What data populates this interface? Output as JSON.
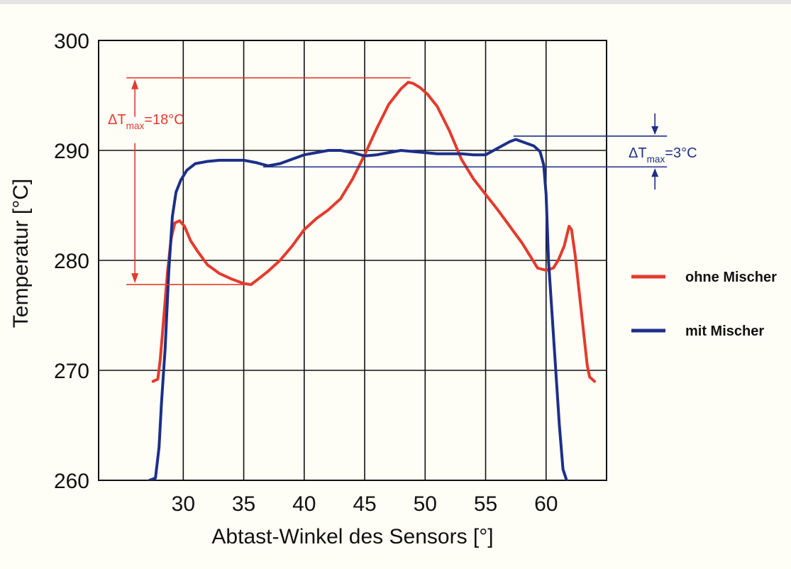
{
  "chart_data": {
    "type": "line",
    "title": "",
    "xlabel": "Abtast-Winkel des Sensors [°]",
    "ylabel": "Temperatur [°C]",
    "xlim": [
      23,
      65
    ],
    "ylim": [
      260,
      300
    ],
    "x_ticks": [
      30,
      35,
      40,
      45,
      50,
      55,
      60
    ],
    "y_ticks": [
      260,
      270,
      280,
      290,
      300
    ],
    "x_gridlines": [
      30,
      35,
      40,
      45,
      50,
      55,
      60
    ],
    "y_gridlines": [
      270,
      280,
      290
    ],
    "grid": true,
    "legend_position": "right",
    "series": [
      {
        "name": "ohne Mischer",
        "color": "#e53a2c",
        "points": [
          [
            27.5,
            269.0
          ],
          [
            27.9,
            269.2
          ],
          [
            28.1,
            271.0
          ],
          [
            28.4,
            275.0
          ],
          [
            28.7,
            279.0
          ],
          [
            29.0,
            282.0
          ],
          [
            29.3,
            283.4
          ],
          [
            29.7,
            283.6
          ],
          [
            30.1,
            283.1
          ],
          [
            30.6,
            281.8
          ],
          [
            31.2,
            280.8
          ],
          [
            32.0,
            279.6
          ],
          [
            33.0,
            278.8
          ],
          [
            34.0,
            278.3
          ],
          [
            35.0,
            277.9
          ],
          [
            35.6,
            277.8
          ],
          [
            36.2,
            278.3
          ],
          [
            37.0,
            279.0
          ],
          [
            38.0,
            280.0
          ],
          [
            39.0,
            281.3
          ],
          [
            40.0,
            282.8
          ],
          [
            41.0,
            283.8
          ],
          [
            42.0,
            284.6
          ],
          [
            43.0,
            285.6
          ],
          [
            44.0,
            287.4
          ],
          [
            45.0,
            289.6
          ],
          [
            46.0,
            292.0
          ],
          [
            47.0,
            294.2
          ],
          [
            48.0,
            295.6
          ],
          [
            48.6,
            296.2
          ],
          [
            49.0,
            296.1
          ],
          [
            49.6,
            295.7
          ],
          [
            50.2,
            295.1
          ],
          [
            51.0,
            294.0
          ],
          [
            52.0,
            291.8
          ],
          [
            53.0,
            289.2
          ],
          [
            54.0,
            287.4
          ],
          [
            55.0,
            286.0
          ],
          [
            56.0,
            284.6
          ],
          [
            57.0,
            283.1
          ],
          [
            58.0,
            281.6
          ],
          [
            58.8,
            280.2
          ],
          [
            59.3,
            279.3
          ],
          [
            60.0,
            279.1
          ],
          [
            60.6,
            279.3
          ],
          [
            61.0,
            280.0
          ],
          [
            61.5,
            281.3
          ],
          [
            61.9,
            283.1
          ],
          [
            62.1,
            282.8
          ],
          [
            62.4,
            280.5
          ],
          [
            62.8,
            276.5
          ],
          [
            63.2,
            272.5
          ],
          [
            63.4,
            270.5
          ],
          [
            63.6,
            269.4
          ],
          [
            64.0,
            269.0
          ]
        ]
      },
      {
        "name": "mit Mischer",
        "color": "#1c2f8a",
        "points": [
          [
            27.2,
            260.0
          ],
          [
            27.7,
            260.2
          ],
          [
            28.0,
            263.0
          ],
          [
            28.2,
            267.0
          ],
          [
            28.5,
            272.0
          ],
          [
            28.8,
            279.0
          ],
          [
            29.1,
            284.0
          ],
          [
            29.4,
            286.2
          ],
          [
            29.8,
            287.3
          ],
          [
            30.3,
            288.2
          ],
          [
            31.0,
            288.8
          ],
          [
            32.0,
            289.0
          ],
          [
            33.0,
            289.1
          ],
          [
            34.0,
            289.1
          ],
          [
            35.0,
            289.1
          ],
          [
            36.0,
            288.9
          ],
          [
            37.0,
            288.6
          ],
          [
            38.0,
            288.8
          ],
          [
            39.0,
            289.2
          ],
          [
            40.0,
            289.6
          ],
          [
            41.0,
            289.8
          ],
          [
            42.0,
            290.0
          ],
          [
            43.0,
            290.0
          ],
          [
            44.0,
            289.8
          ],
          [
            45.0,
            289.5
          ],
          [
            46.0,
            289.6
          ],
          [
            47.0,
            289.8
          ],
          [
            48.0,
            290.0
          ],
          [
            49.0,
            289.9
          ],
          [
            50.0,
            289.8
          ],
          [
            51.0,
            289.7
          ],
          [
            52.0,
            289.7
          ],
          [
            53.0,
            289.7
          ],
          [
            54.0,
            289.6
          ],
          [
            55.0,
            289.6
          ],
          [
            56.0,
            290.2
          ],
          [
            57.0,
            290.8
          ],
          [
            57.5,
            291.0
          ],
          [
            58.0,
            290.8
          ],
          [
            59.0,
            290.4
          ],
          [
            59.5,
            289.9
          ],
          [
            59.8,
            288.7
          ],
          [
            60.0,
            286.0
          ],
          [
            60.2,
            280.0
          ],
          [
            60.5,
            275.0
          ],
          [
            60.8,
            270.0
          ],
          [
            61.1,
            265.0
          ],
          [
            61.4,
            261.0
          ],
          [
            61.7,
            260.0
          ]
        ]
      }
    ],
    "annotations": [
      {
        "id": "delta-red",
        "color": "#e53a2c",
        "label_symbol": "ΔT",
        "label_sub": "max",
        "label_value": "=18°C",
        "y_low": 277.8,
        "y_high": 296.6,
        "x_line_start": 25.3,
        "x_line_end_high": 48.8,
        "x_line_end_low": 35.8,
        "x_arrow": 26.0
      },
      {
        "id": "delta-blue",
        "color": "#1c2f8a",
        "label_symbol": "ΔT",
        "label_sub": "max",
        "label_value": "=3°C",
        "y_low": 288.5,
        "y_high": 291.3,
        "x_line_start_high": 57.3,
        "x_line_start_low": 36.6,
        "x_line_end": 70.0,
        "x_arrow": 69.0
      }
    ]
  }
}
